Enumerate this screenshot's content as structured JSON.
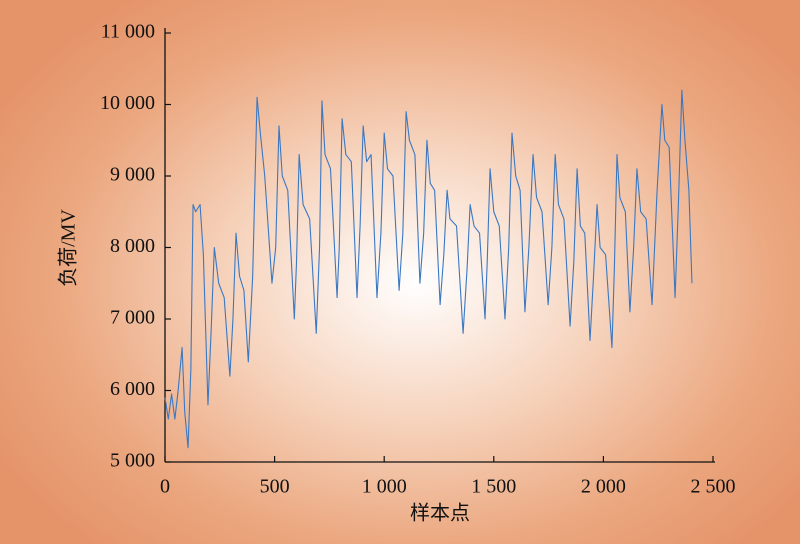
{
  "chart_data": {
    "type": "line",
    "xlabel": "样本点",
    "ylabel": "负荷/MV",
    "xlim": [
      0,
      2500
    ],
    "ylim": [
      5000,
      11000
    ],
    "xticks": [
      0,
      500,
      {
        "value": 1000,
        "label": "1 000"
      },
      {
        "value": 1500,
        "label": "1 500"
      },
      {
        "value": 2000,
        "label": "2 000"
      },
      {
        "value": 2500,
        "label": "2 500"
      }
    ],
    "yticks": [
      {
        "value": 5000,
        "label": "5 000"
      },
      {
        "value": 6000,
        "label": "6 000"
      },
      {
        "value": 7000,
        "label": "7 000"
      },
      {
        "value": 8000,
        "label": "8 000"
      },
      {
        "value": 9000,
        "label": "9 000"
      },
      {
        "value": 10000,
        "label": "10 000"
      },
      {
        "value": 11000,
        "label": "11 000"
      }
    ],
    "x": [
      0,
      15,
      30,
      45,
      60,
      78,
      90,
      105,
      118,
      128,
      140,
      160,
      175,
      196,
      210,
      225,
      245,
      270,
      296,
      310,
      324,
      340,
      360,
      380,
      400,
      420,
      435,
      455,
      488,
      505,
      520,
      535,
      560,
      590,
      600,
      612,
      630,
      660,
      690,
      705,
      716,
      730,
      755,
      785,
      795,
      808,
      825,
      850,
      876,
      890,
      904,
      920,
      940,
      967,
      985,
      1000,
      1015,
      1040,
      1068,
      1085,
      1100,
      1115,
      1140,
      1163,
      1180,
      1195,
      1210,
      1230,
      1255,
      1272,
      1287,
      1300,
      1330,
      1360,
      1378,
      1392,
      1410,
      1435,
      1460,
      1470,
      1483,
      1500,
      1525,
      1551,
      1568,
      1583,
      1600,
      1620,
      1642,
      1660,
      1679,
      1695,
      1720,
      1748,
      1765,
      1780,
      1795,
      1820,
      1848,
      1865,
      1880,
      1895,
      1915,
      1939,
      1955,
      1971,
      1985,
      2010,
      2039,
      2050,
      2062,
      2075,
      2100,
      2121,
      2138,
      2153,
      2170,
      2195,
      2222,
      2245,
      2267,
      2280,
      2300,
      2327,
      2342,
      2358,
      2372,
      2390,
      2404
    ],
    "series": [
      {
        "color": "#3b78c2",
        "values": [
          5900,
          5600,
          5950,
          5600,
          6000,
          6600,
          5700,
          5200,
          6300,
          8600,
          8500,
          8600,
          7900,
          5800,
          6800,
          8000,
          7500,
          7300,
          6200,
          7000,
          8200,
          7600,
          7400,
          6400,
          7600,
          10100,
          9600,
          9000,
          7500,
          8000,
          9700,
          9000,
          8800,
          7000,
          7800,
          9300,
          8600,
          8400,
          6800,
          8000,
          10050,
          9300,
          9100,
          7300,
          8000,
          9800,
          9300,
          9200,
          7300,
          8300,
          9700,
          9200,
          9300,
          7300,
          8200,
          9600,
          9100,
          9000,
          7400,
          8200,
          9900,
          9500,
          9300,
          7500,
          8200,
          9500,
          8900,
          8800,
          7200,
          7900,
          8800,
          8400,
          8300,
          6800,
          7700,
          8600,
          8300,
          8200,
          7000,
          7800,
          9100,
          8500,
          8300,
          7000,
          8000,
          9600,
          9000,
          8800,
          7100,
          8000,
          9300,
          8700,
          8500,
          7200,
          8000,
          9300,
          8600,
          8400,
          6900,
          7800,
          9100,
          8300,
          8200,
          6700,
          7600,
          8600,
          8000,
          7900,
          6600,
          7700,
          9300,
          8700,
          8500,
          7100,
          8000,
          9100,
          8500,
          8400,
          7200,
          8800,
          10000,
          9500,
          9400,
          7300,
          8600,
          10200,
          9500,
          8800,
          7500
        ]
      }
    ]
  }
}
